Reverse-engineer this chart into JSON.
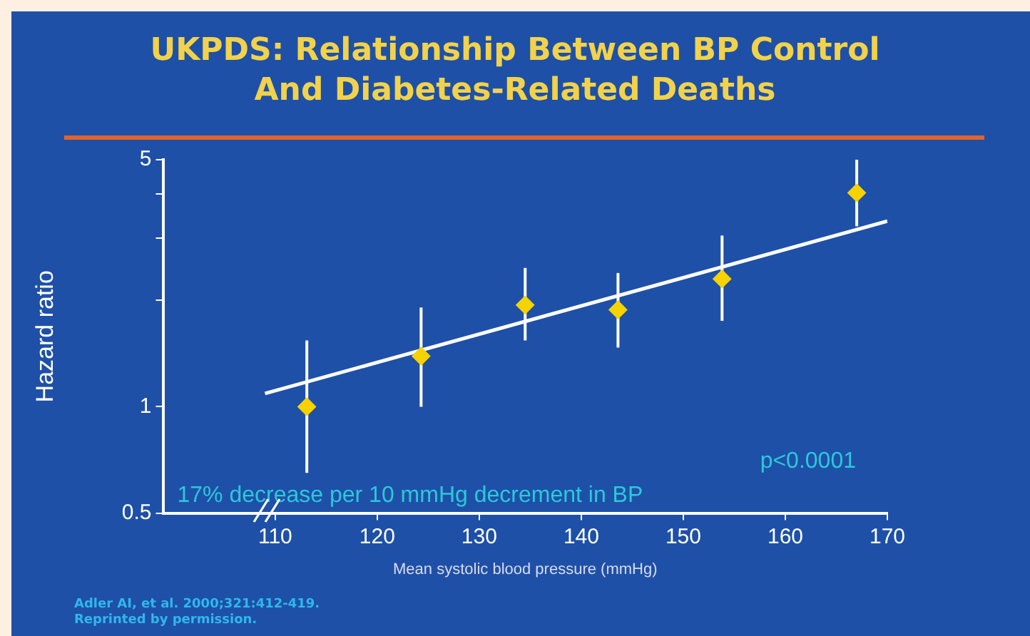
{
  "chart_data": {
    "type": "scatter",
    "title": "UKPDS: Relationship Between BP Control\nAnd Diabetes-Related Deaths",
    "xlabel": "Mean systolic blood pressure (mmHg)",
    "ylabel": "Hazard ratio",
    "annotations": [
      "p<0.0001",
      "17% decrease per 10 mmHg decrement in BP",
      "Adler AI, et al. 2000;321:412-419.",
      "Reprinted by permission."
    ],
    "log": "y",
    "grid": false,
    "legend": false,
    "xlim": [
      99,
      170
    ],
    "xticks": [
      110,
      120,
      130,
      140,
      150,
      160,
      170
    ],
    "ylim": [
      0.5,
      5
    ],
    "yticks": [
      0.5,
      1,
      {
        "value": 2,
        "label": null
      },
      {
        "value": 3,
        "label": null
      },
      {
        "value": 4,
        "label": null
      },
      5
    ],
    "series": [
      {
        "marker": "diamond",
        "color": "#f5d200",
        "x": [
          113.1,
          124.3,
          134.5,
          143.6,
          153.8,
          167.0
        ],
        "values": [
          1.0,
          1.39,
          1.94,
          1.88,
          2.3,
          4.03
        ],
        "errors": [
          [
            0.65,
            1.54
          ],
          [
            1.0,
            1.91
          ],
          [
            1.54,
            2.47
          ],
          [
            1.47,
            2.39
          ],
          [
            1.75,
            3.05
          ],
          [
            3.24,
            5.0
          ]
        ]
      },
      {
        "type": "line",
        "marker": "none",
        "color": "#ffffff",
        "x": [
          109,
          170
        ],
        "values": [
          1.09,
          3.35
        ]
      }
    ]
  }
}
